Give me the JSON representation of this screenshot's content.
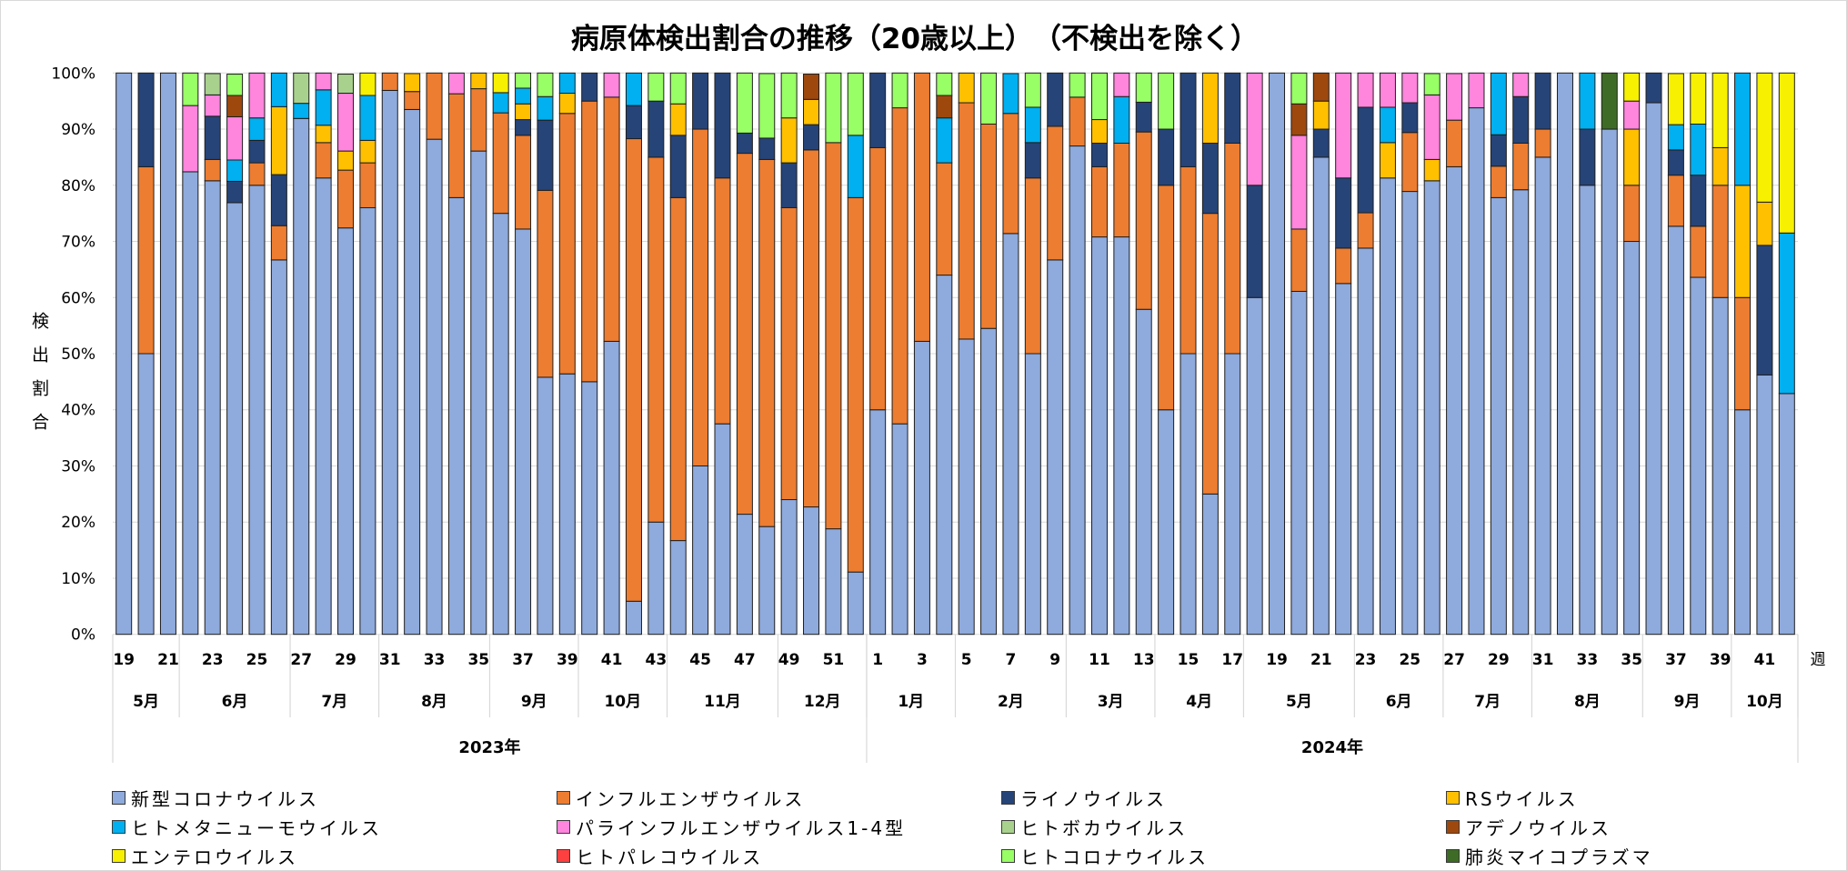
{
  "chart_data": {
    "type": "bar",
    "stacked": true,
    "title": "病原体検出割合の推移（20歳以上）　（不検出を除く）",
    "ylabel": "検出割合",
    "xlabel": "週",
    "ylim": [
      0,
      100
    ],
    "y_ticks": [
      "0%",
      "10%",
      "20%",
      "30%",
      "40%",
      "50%",
      "60%",
      "70%",
      "80%",
      "90%",
      "100%"
    ],
    "grid": true,
    "legend_position": "bottom",
    "weeks": [
      19,
      20,
      21,
      22,
      23,
      24,
      25,
      26,
      27,
      28,
      29,
      30,
      31,
      32,
      33,
      34,
      35,
      36,
      37,
      38,
      39,
      40,
      41,
      42,
      43,
      44,
      45,
      46,
      47,
      48,
      49,
      50,
      51,
      52,
      1,
      2,
      3,
      4,
      5,
      6,
      7,
      8,
      9,
      10,
      11,
      12,
      13,
      14,
      15,
      16,
      17,
      18,
      19,
      20,
      21,
      22,
      23,
      24,
      25,
      26,
      27,
      28,
      29,
      30,
      31,
      32,
      33,
      34,
      35,
      36,
      37,
      38,
      39,
      40,
      41,
      42
    ],
    "week_tick_labels": [
      "19",
      "",
      "21",
      "",
      "23",
      "",
      "25",
      "",
      "27",
      "",
      "29",
      "",
      "31",
      "",
      "33",
      "",
      "35",
      "",
      "37",
      "",
      "39",
      "",
      "41",
      "",
      "43",
      "",
      "45",
      "",
      "47",
      "",
      "49",
      "",
      "51",
      "",
      "1",
      "",
      "3",
      "",
      "5",
      "",
      "7",
      "",
      "9",
      "",
      "11",
      "",
      "13",
      "",
      "15",
      "",
      "17",
      "",
      "19",
      "",
      "21",
      "",
      "23",
      "",
      "25",
      "",
      "27",
      "",
      "29",
      "",
      "31",
      "",
      "33",
      "",
      "35",
      "",
      "37",
      "",
      "39",
      "",
      "41",
      ""
    ],
    "month_groups": [
      {
        "label": "5月",
        "weeks": 3
      },
      {
        "label": "6月",
        "weeks": 5
      },
      {
        "label": "7月",
        "weeks": 4
      },
      {
        "label": "8月",
        "weeks": 5
      },
      {
        "label": "9月",
        "weeks": 4
      },
      {
        "label": "10月",
        "weeks": 4
      },
      {
        "label": "11月",
        "weeks": 5
      },
      {
        "label": "12月",
        "weeks": 4
      },
      {
        "label": "1月",
        "weeks": 4
      },
      {
        "label": "2月",
        "weeks": 5
      },
      {
        "label": "3月",
        "weeks": 4
      },
      {
        "label": "4月",
        "weeks": 4
      },
      {
        "label": "5月",
        "weeks": 5
      },
      {
        "label": "6月",
        "weeks": 4
      },
      {
        "label": "7月",
        "weeks": 4
      },
      {
        "label": "8月",
        "weeks": 5
      },
      {
        "label": "9月",
        "weeks": 4
      },
      {
        "label": "10月",
        "weeks": 3
      }
    ],
    "year_groups": [
      {
        "label": "2023年",
        "weeks": 34
      },
      {
        "label": "2024年",
        "weeks": 42
      }
    ],
    "series": [
      {
        "name": "新型コロナウイルス",
        "color": "#8FAADC",
        "values": [
          100,
          50,
          100,
          82.4,
          80.8,
          76.9,
          80,
          66.7,
          91.9,
          81.3,
          72.4,
          76,
          96.9,
          93.5,
          88.2,
          77.8,
          86.1,
          75,
          72.2,
          45.8,
          46.4,
          45,
          52.2,
          5.9,
          20,
          16.7,
          30,
          37.5,
          21.4,
          19.2,
          24,
          22.7,
          18.8,
          11.1,
          40,
          37.5,
          52.2,
          64,
          52.6,
          54.5,
          71.4,
          50,
          66.7,
          87,
          70.8,
          70.8,
          57.9,
          40,
          50,
          25,
          50,
          60,
          100,
          61.1,
          85,
          62.5,
          68.8,
          81.3,
          78.9,
          80.8,
          83.3,
          93.8,
          77.8,
          79.2,
          85,
          100,
          80,
          90,
          70,
          94.7,
          72.7,
          63.6,
          60,
          40,
          46.2,
          42.9
        ]
      },
      {
        "name": "インフルエンザウイルス",
        "color": "#ED7D31",
        "values": [
          0,
          33.3,
          0,
          0,
          3.8,
          0,
          4,
          6.1,
          0,
          6.3,
          10.3,
          8,
          3.1,
          3.2,
          11.8,
          18.5,
          11.1,
          17.9,
          16.7,
          33.3,
          46.4,
          50,
          43.5,
          82.4,
          65,
          61.1,
          60,
          43.8,
          64.3,
          65.4,
          52,
          63.6,
          68.8,
          66.7,
          46.7,
          56.3,
          47.8,
          20,
          42.1,
          36.4,
          21.4,
          31.3,
          23.8,
          8.7,
          12.5,
          16.7,
          31.6,
          40,
          33.3,
          50,
          37.5,
          0,
          0,
          11.1,
          0,
          6.3,
          6.3,
          0,
          10.5,
          0,
          8.3,
          0,
          5.6,
          8.3,
          5,
          0,
          0,
          0,
          10,
          0,
          9.1,
          9.1,
          20,
          20,
          0,
          0
        ]
      },
      {
        "name": "ライノウイルス",
        "color": "#264478",
        "values": [
          0,
          16.7,
          0,
          0,
          7.7,
          3.8,
          4,
          9.1,
          0,
          0,
          0,
          0,
          0,
          0,
          0,
          0,
          0,
          0,
          2.8,
          12.5,
          0,
          5,
          0,
          5.9,
          10,
          11.1,
          10,
          18.8,
          3.6,
          3.8,
          8,
          4.5,
          0,
          0,
          13.3,
          0,
          0,
          0,
          0,
          0,
          0,
          6.3,
          9.5,
          0,
          4.2,
          0,
          5.3,
          10,
          16.7,
          12.5,
          12.5,
          20,
          0,
          0,
          5,
          12.5,
          18.8,
          0,
          5.3,
          0,
          0,
          0,
          5.6,
          8.3,
          10,
          0,
          10,
          0,
          0,
          5.3,
          4.5,
          9.1,
          0,
          0,
          23.1,
          0
        ]
      },
      {
        "name": "RSウイルス",
        "color": "#FFC000",
        "values": [
          0,
          0,
          0,
          0,
          0,
          0,
          0,
          12.1,
          0,
          3.1,
          3.4,
          4,
          0,
          3.2,
          0,
          0,
          2.8,
          0,
          2.8,
          0,
          3.6,
          0,
          0,
          0,
          0,
          5.6,
          0,
          0,
          0,
          0,
          8,
          4.5,
          0,
          0,
          0,
          0,
          0,
          0,
          5.3,
          0,
          0,
          0,
          0,
          0,
          4.2,
          0,
          0,
          0,
          0,
          12.5,
          0,
          0,
          0,
          0,
          5,
          0,
          0,
          6.3,
          0,
          3.8,
          0,
          0,
          0,
          0,
          0,
          0,
          0,
          0,
          10,
          0,
          0,
          0,
          6.7,
          20,
          7.7,
          0
        ]
      },
      {
        "name": "ヒトメタニューモウイルス",
        "color": "#00B0F0",
        "values": [
          0,
          0,
          0,
          0,
          0,
          3.8,
          4,
          6.1,
          2.7,
          6.3,
          0,
          8,
          0,
          0,
          0,
          0,
          0,
          3.6,
          2.8,
          4.2,
          3.6,
          0,
          0,
          5.9,
          0,
          0,
          0,
          0,
          0,
          0,
          0,
          0,
          0,
          11.1,
          0,
          0,
          0,
          8,
          0,
          0,
          7.1,
          6.3,
          0,
          0,
          0,
          8.3,
          0,
          0,
          0,
          0,
          0,
          0,
          0,
          0,
          0,
          0,
          0,
          6.3,
          0,
          0,
          0,
          0,
          11.1,
          0,
          0,
          0,
          10,
          0,
          0,
          0,
          4.5,
          9.1,
          0,
          20,
          0,
          28.6
        ]
      },
      {
        "name": "パラインフルエンザウイルス1-4型",
        "color": "#FF85DD",
        "values": [
          0,
          0,
          0,
          11.8,
          3.8,
          7.7,
          8,
          0,
          0,
          3.1,
          10.3,
          0,
          0,
          0,
          0,
          3.7,
          0,
          0,
          0,
          0,
          0,
          0,
          4.3,
          0,
          0,
          0,
          0,
          0,
          0,
          0,
          0,
          0,
          0,
          0,
          0,
          0,
          0,
          0,
          0,
          0,
          0,
          0,
          0,
          0,
          0,
          4.2,
          0,
          0,
          0,
          0,
          0,
          20,
          0,
          16.7,
          0,
          18.8,
          6.3,
          6.3,
          5.3,
          11.5,
          8.3,
          6.3,
          0,
          4.2,
          0,
          0,
          0,
          0,
          5,
          0,
          0,
          0,
          0,
          0,
          0,
          0
        ]
      },
      {
        "name": "ヒトボカウイルス",
        "color": "#A9D18E",
        "values": [
          0,
          0,
          0,
          0,
          3.8,
          0,
          0,
          0,
          5.4,
          0,
          3.4,
          0,
          0,
          0,
          0,
          0,
          0,
          0,
          0,
          0,
          0,
          0,
          0,
          0,
          0,
          0,
          0,
          0,
          0,
          0,
          0,
          0,
          0,
          0,
          0,
          0,
          0,
          0,
          0,
          0,
          0,
          0,
          0,
          0,
          0,
          0,
          0,
          0,
          0,
          0,
          0,
          0,
          0,
          0,
          0,
          0,
          0,
          0,
          0,
          0,
          0,
          0,
          0,
          0,
          0,
          0,
          0,
          0,
          0,
          0,
          0,
          0,
          0,
          0,
          0,
          0
        ]
      },
      {
        "name": "アデノウイルス",
        "color": "#9E480E",
        "values": [
          0,
          0,
          0,
          0,
          0,
          3.8,
          0,
          0,
          0,
          0,
          0,
          0,
          0,
          0,
          0,
          0,
          0,
          0,
          0,
          0,
          0,
          0,
          0,
          0,
          0,
          0,
          0,
          0,
          0,
          0,
          0,
          4.5,
          0,
          0,
          0,
          0,
          0,
          4,
          0,
          0,
          0,
          0,
          0,
          0,
          0,
          0,
          0,
          0,
          0,
          0,
          0,
          0,
          0,
          5.6,
          5,
          0,
          0,
          0,
          0,
          0,
          0,
          0,
          0,
          0,
          0,
          0,
          0,
          0,
          0,
          0,
          0,
          0,
          0,
          0,
          0,
          0
        ]
      },
      {
        "name": "エンテロウイルス",
        "color": "#F7F000",
        "values": [
          0,
          0,
          0,
          0,
          0,
          0,
          0,
          0,
          0,
          0,
          0,
          4,
          0,
          0,
          0,
          0,
          0,
          3.6,
          0,
          0,
          0,
          0,
          0,
          0,
          0,
          0,
          0,
          0,
          0,
          0,
          0,
          0,
          0,
          0,
          0,
          0,
          0,
          0,
          0,
          0,
          0,
          0,
          0,
          0,
          0,
          0,
          0,
          0,
          0,
          0,
          0,
          0,
          0,
          0,
          0,
          0,
          0,
          0,
          0,
          0,
          0,
          0,
          0,
          0,
          0,
          0,
          0,
          0,
          5,
          0,
          9.1,
          9.1,
          13.3,
          0,
          23.1,
          28.6
        ]
      },
      {
        "name": "ヒトパレコウイルス",
        "color": "#FF4040",
        "values": [
          0,
          0,
          0,
          0,
          0,
          0,
          0,
          0,
          0,
          0,
          0,
          0,
          0,
          0,
          0,
          0,
          0,
          0,
          0,
          0,
          0,
          0,
          0,
          0,
          0,
          0,
          0,
          0,
          0,
          0,
          0,
          0,
          0,
          0,
          0,
          0,
          0,
          0,
          0,
          0,
          0,
          0,
          0,
          0,
          0,
          0,
          0,
          0,
          0,
          0,
          0,
          0,
          0,
          0,
          0,
          0,
          0,
          0,
          0,
          0,
          0,
          0,
          0,
          0,
          0,
          0,
          0,
          0,
          0,
          0,
          0,
          0,
          0,
          0,
          0,
          0
        ]
      },
      {
        "name": "ヒトコロナウイルス",
        "color": "#99FF66",
        "values": [
          0,
          0,
          0,
          5.9,
          0,
          3.8,
          0,
          0,
          0,
          0,
          0,
          0,
          0,
          0,
          0,
          0,
          0,
          0,
          2.8,
          4.2,
          0,
          0,
          0,
          0,
          5,
          5.6,
          0,
          0,
          10.7,
          11.5,
          8,
          0,
          12.5,
          11.1,
          0,
          6.3,
          0,
          4,
          0,
          9.1,
          0,
          6.3,
          0,
          4.3,
          8.3,
          0,
          5.3,
          10,
          0,
          0,
          0,
          0,
          0,
          5.6,
          0,
          0,
          0,
          0,
          0,
          3.8,
          0,
          0,
          0,
          0,
          0,
          0,
          0,
          0,
          0,
          0,
          0,
          0,
          0,
          0,
          0,
          0
        ]
      },
      {
        "name": "肺炎マイコプラズマ",
        "color": "#3E6B25",
        "values": [
          0,
          0,
          0,
          0,
          0,
          0,
          0,
          0,
          0,
          0,
          0,
          0,
          0,
          0,
          0,
          0,
          0,
          0,
          0,
          0,
          0,
          0,
          0,
          0,
          0,
          0,
          0,
          0,
          0,
          0,
          0,
          0,
          0,
          0,
          0,
          0,
          0,
          0,
          0,
          0,
          0,
          0,
          0,
          0,
          0,
          0,
          0,
          0,
          0,
          0,
          0,
          0,
          0,
          0,
          0,
          0,
          0,
          0,
          0,
          0,
          0,
          0,
          0,
          0,
          0,
          0,
          0,
          10,
          0,
          0,
          0,
          0,
          0,
          0,
          0,
          0
        ]
      }
    ]
  }
}
